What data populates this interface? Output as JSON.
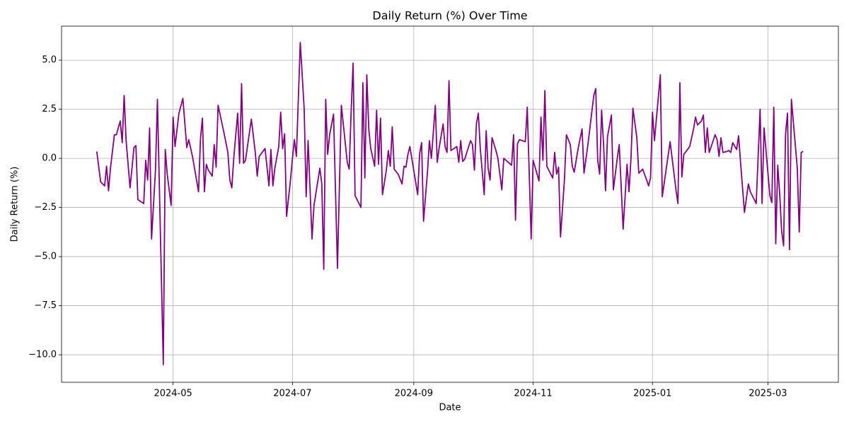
{
  "chart_data": {
    "type": "line",
    "title": "Daily Return (%) Over Time",
    "xlabel": "Date",
    "ylabel": "Daily Return (%)",
    "color": "#800080",
    "grid": true,
    "xlim": [
      "2024-03-05",
      "2025-04-06"
    ],
    "xticks": [
      {
        "value": "2024-05-01",
        "label": "2024-05"
      },
      {
        "value": "2024-07-01",
        "label": "2024-07"
      },
      {
        "value": "2024-09-01",
        "label": "2024-09"
      },
      {
        "value": "2024-11-01",
        "label": "2024-11"
      },
      {
        "value": "2025-01-01",
        "label": "2025-01"
      },
      {
        "value": "2025-03-01",
        "label": "2025-03"
      }
    ],
    "ylim": [
      -11.4,
      6.73
    ],
    "yticks": [
      {
        "value": -10,
        "label": "−10.0"
      },
      {
        "value": -7.5,
        "label": "−7.5"
      },
      {
        "value": -5,
        "label": "−5.0"
      },
      {
        "value": -2.5,
        "label": "−2.5"
      },
      {
        "value": 0,
        "label": "0.0"
      },
      2.5,
      {
        "value": 5,
        "label": "5.0"
      }
    ],
    "x": [
      "2024-03-23",
      "2024-03-25",
      "2024-03-27",
      "2024-03-28",
      "2024-03-29",
      "2024-03-30",
      "2024-04-01",
      "2024-04-02",
      "2024-04-04",
      "2024-04-05",
      "2024-04-06",
      "2024-04-07",
      "2024-04-09",
      "2024-04-10",
      "2024-04-11",
      "2024-04-12",
      "2024-04-13",
      "2024-04-16",
      "2024-04-17",
      "2024-04-18",
      "2024-04-19",
      "2024-04-20",
      "2024-04-22",
      "2024-04-23",
      "2024-04-26",
      "2024-04-27",
      "2024-04-28",
      "2024-04-30",
      "2024-05-01",
      "2024-05-02",
      "2024-05-04",
      "2024-05-06",
      "2024-05-08",
      "2024-05-09",
      "2024-05-11",
      "2024-05-14",
      "2024-05-15",
      "2024-05-16",
      "2024-05-17",
      "2024-05-18",
      "2024-05-19",
      "2024-05-21",
      "2024-05-22",
      "2024-05-23",
      "2024-05-24",
      "2024-05-27",
      "2024-05-29",
      "2024-05-30",
      "2024-05-31",
      "2024-06-01",
      "2024-06-03",
      "2024-06-04",
      "2024-06-05",
      "2024-06-06",
      "2024-06-07",
      "2024-06-10",
      "2024-06-12",
      "2024-06-13",
      "2024-06-14",
      "2024-06-17",
      "2024-06-19",
      "2024-06-20",
      "2024-06-21",
      "2024-06-22",
      "2024-06-24",
      "2024-06-25",
      "2024-06-26",
      "2024-06-27",
      "2024-06-28",
      "2024-06-30",
      "2024-07-01",
      "2024-07-02",
      "2024-07-03",
      "2024-07-05",
      "2024-07-07",
      "2024-07-08",
      "2024-07-09",
      "2024-07-11",
      "2024-07-12",
      "2024-07-15",
      "2024-07-16",
      "2024-07-17",
      "2024-07-18",
      "2024-07-19",
      "2024-07-20",
      "2024-07-22",
      "2024-07-24",
      "2024-07-26",
      "2024-07-29",
      "2024-07-30",
      "2024-07-31",
      "2024-08-01",
      "2024-08-02",
      "2024-08-05",
      "2024-08-06",
      "2024-08-07",
      "2024-08-08",
      "2024-08-09",
      "2024-08-10",
      "2024-08-12",
      "2024-08-13",
      "2024-08-14",
      "2024-08-15",
      "2024-08-16",
      "2024-08-18",
      "2024-08-19",
      "2024-08-20",
      "2024-08-21",
      "2024-08-22",
      "2024-08-24",
      "2024-08-26",
      "2024-08-27",
      "2024-08-28",
      "2024-08-29",
      "2024-08-30",
      "2024-08-31",
      "2024-09-03",
      "2024-09-04",
      "2024-09-05",
      "2024-09-06",
      "2024-09-08",
      "2024-09-09",
      "2024-09-10",
      "2024-09-12",
      "2024-09-13",
      "2024-09-14",
      "2024-09-16",
      "2024-09-17",
      "2024-09-18",
      "2024-09-19",
      "2024-09-20",
      "2024-09-23",
      "2024-09-24",
      "2024-09-25",
      "2024-09-26",
      "2024-09-27",
      "2024-09-30",
      "2024-10-01",
      "2024-10-02",
      "2024-10-03",
      "2024-10-04",
      "2024-10-05",
      "2024-10-07",
      "2024-10-08",
      "2024-10-09",
      "2024-10-10",
      "2024-10-11",
      "2024-10-13",
      "2024-10-14",
      "2024-10-16",
      "2024-10-17",
      "2024-10-21",
      "2024-10-22",
      "2024-10-23",
      "2024-10-24",
      "2024-10-25",
      "2024-10-28",
      "2024-10-29",
      "2024-10-31",
      "2024-11-01",
      "2024-11-04",
      "2024-11-05",
      "2024-11-06",
      "2024-11-07",
      "2024-11-08",
      "2024-11-11",
      "2024-11-12",
      "2024-11-13",
      "2024-11-14",
      "2024-11-15",
      "2024-11-17",
      "2024-11-18",
      "2024-11-20",
      "2024-11-21",
      "2024-11-22",
      "2024-11-24",
      "2024-11-26",
      "2024-11-27",
      "2024-11-29",
      "2024-12-02",
      "2024-12-03",
      "2024-12-04",
      "2024-12-05",
      "2024-12-06",
      "2024-12-07",
      "2024-12-08",
      "2024-12-09",
      "2024-12-11",
      "2024-12-12",
      "2024-12-14",
      "2024-12-15",
      "2024-12-17",
      "2024-12-19",
      "2024-12-20",
      "2024-12-21",
      "2024-12-22",
      "2024-12-24",
      "2024-12-25",
      "2024-12-27",
      "2024-12-29",
      "2024-12-30",
      "2024-12-31",
      "2025-01-01",
      "2025-01-02",
      "2025-01-05",
      "2025-01-06",
      "2025-01-10",
      "2025-01-13",
      "2025-01-14",
      "2025-01-15",
      "2025-01-16",
      "2025-01-17",
      "2025-01-20",
      "2025-01-22",
      "2025-01-23",
      "2025-01-24",
      "2025-01-26",
      "2025-01-27",
      "2025-01-28",
      "2025-01-29",
      "2025-01-30",
      "2025-02-02",
      "2025-02-03",
      "2025-02-04",
      "2025-02-05",
      "2025-02-06",
      "2025-02-08",
      "2025-02-09",
      "2025-02-10",
      "2025-02-11",
      "2025-02-13",
      "2025-02-14",
      "2025-02-15",
      "2025-02-17",
      "2025-02-19",
      "2025-02-20",
      "2025-02-23",
      "2025-02-25",
      "2025-02-26",
      "2025-02-27",
      "2025-02-28",
      "2025-03-02",
      "2025-03-03",
      "2025-03-04",
      "2025-03-05",
      "2025-03-06",
      "2025-03-07",
      "2025-03-08",
      "2025-03-09",
      "2025-03-10",
      "2025-03-11",
      "2025-03-12",
      "2025-03-13",
      "2025-03-16",
      "2025-03-17",
      "2025-03-18",
      "2025-03-19"
    ],
    "values": [
      0.35,
      -1.2,
      -1.4,
      -0.4,
      -1.65,
      -0.5,
      1.2,
      1.2,
      1.9,
      0.8,
      3.2,
      0.9,
      -1.5,
      -0.5,
      0.55,
      0.65,
      -2.1,
      -2.3,
      -0.1,
      -1.1,
      1.55,
      -4.1,
      -0.6,
      3.0,
      -10.5,
      0.45,
      -0.8,
      -2.4,
      2.1,
      0.6,
      2.3,
      3.05,
      0.55,
      0.95,
      0.05,
      -1.7,
      1.0,
      2.05,
      -1.7,
      -0.3,
      -0.6,
      -0.9,
      0.7,
      -0.45,
      2.7,
      1.3,
      0.3,
      -1.1,
      -1.5,
      0.0,
      2.3,
      -0.25,
      3.8,
      -0.25,
      -0.1,
      2.0,
      0.3,
      -0.9,
      0.1,
      0.5,
      -1.4,
      0.45,
      -1.4,
      -0.5,
      0.6,
      2.35,
      0.5,
      1.25,
      -2.95,
      -1.1,
      0.0,
      0.95,
      0.1,
      5.9,
      2.5,
      -1.95,
      0.9,
      -4.1,
      -2.4,
      -0.5,
      -1.3,
      -5.65,
      3.0,
      0.2,
      1.2,
      2.25,
      -5.6,
      2.7,
      -0.2,
      -0.55,
      2.4,
      4.85,
      -1.9,
      -2.5,
      3.85,
      -1.0,
      4.25,
      1.5,
      0.5,
      -0.4,
      2.45,
      -0.3,
      2.05,
      -1.85,
      -0.6,
      0.4,
      -0.4,
      1.6,
      -0.55,
      -0.8,
      -1.3,
      -0.4,
      -0.45,
      0.2,
      0.6,
      0.0,
      -1.85,
      0.25,
      0.8,
      -3.2,
      -0.7,
      0.9,
      0.0,
      2.7,
      -0.2,
      0.55,
      1.75,
      0.6,
      0.3,
      3.95,
      0.4,
      0.6,
      -0.2,
      0.9,
      -0.15,
      -0.05,
      0.9,
      0.7,
      -0.6,
      1.75,
      2.3,
      0.5,
      -1.85,
      1.4,
      -0.5,
      -1.1,
      1.05,
      0.4,
      0.0,
      -1.6,
      0.0,
      -0.35,
      1.2,
      -3.15,
      0.75,
      0.95,
      0.85,
      2.6,
      -4.1,
      -0.1,
      -1.15,
      2.1,
      -0.1,
      3.45,
      -0.4,
      -1.0,
      0.3,
      -0.8,
      -0.45,
      -4.0,
      -1.1,
      1.2,
      0.7,
      -0.4,
      -0.7,
      0.5,
      1.5,
      -0.75,
      0.7,
      3.2,
      3.55,
      -0.1,
      -0.8,
      2.45,
      0.7,
      -1.65,
      1.1,
      2.2,
      -1.6,
      0.0,
      0.7,
      -3.6,
      -0.3,
      -1.7,
      0.0,
      2.55,
      1.05,
      -0.75,
      -0.55,
      -1.1,
      -1.4,
      -1.0,
      2.35,
      0.9,
      4.25,
      -1.95,
      0.85,
      -1.6,
      -2.3,
      3.85,
      -0.95,
      0.2,
      0.6,
      1.5,
      2.1,
      1.7,
      1.9,
      2.2,
      0.3,
      1.55,
      0.3,
      1.2,
      0.95,
      0.1,
      1.05,
      0.3,
      0.35,
      0.4,
      0.3,
      0.8,
      0.45,
      1.15,
      -0.2,
      -2.75,
      -1.3,
      -1.7,
      -2.3,
      2.5,
      -2.3,
      1.55,
      0.4,
      -1.9,
      -2.25,
      2.6,
      -4.35,
      -0.35,
      -1.8,
      -3.7,
      -4.45,
      1.25,
      2.3,
      -4.65,
      3.0,
      -0.5,
      -3.75,
      0.3,
      0.35
    ]
  }
}
